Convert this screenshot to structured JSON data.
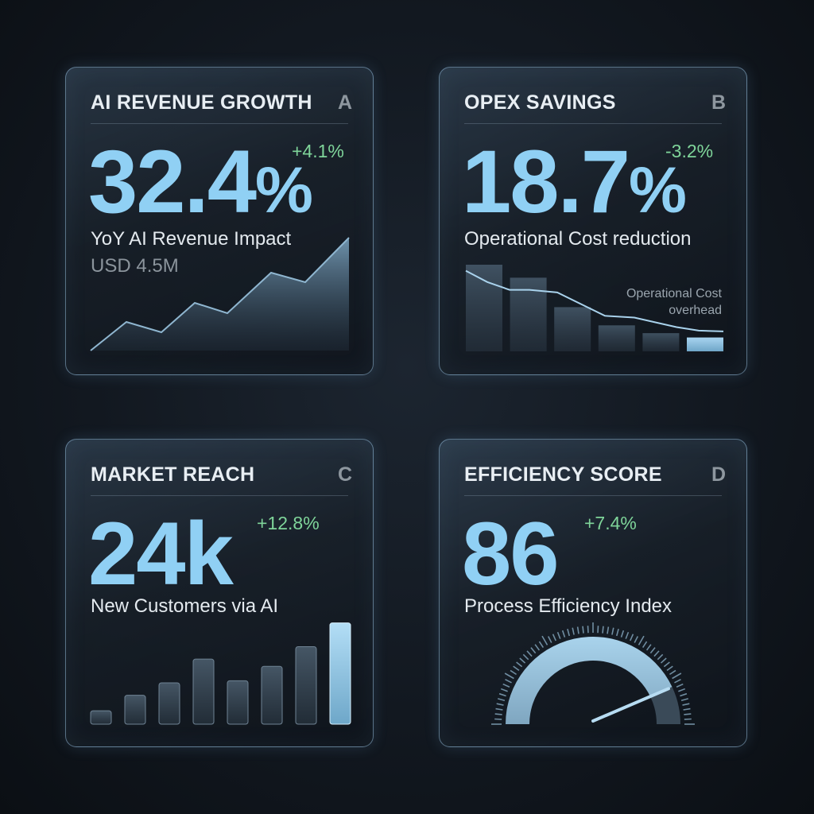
{
  "cards": [
    {
      "title": "AI REVENUE GROWTH",
      "letter": "A",
      "value": "32.4",
      "unit": "%",
      "delta": "+4.1%",
      "subtitle": "YoY AI Revenue Impact",
      "detail": "USD 4.5M"
    },
    {
      "title": "OPEX SAVINGS",
      "letter": "B",
      "value": "18.7",
      "unit": "%",
      "delta": "-3.2%",
      "subtitle": "Operational Cost reduction",
      "chart_note": "Operational Cost overhead"
    },
    {
      "title": "MARKET REACH",
      "letter": "C",
      "value": "24k",
      "delta": "+12.8%",
      "subtitle": "New Customers via AI"
    },
    {
      "title": "EFFICIENCY SCORE",
      "letter": "D",
      "value": "86",
      "delta": "+7.4%",
      "subtitle": "Process Efficiency Index"
    }
  ],
  "colors": {
    "accent": "#90d0f4",
    "positive": "#7fd59a",
    "background": "#121820"
  },
  "chart_data": [
    {
      "type": "area",
      "card": "A",
      "values": [
        0,
        20,
        13,
        33,
        26,
        54,
        47,
        78
      ]
    },
    {
      "type": "bar",
      "card": "B",
      "values": [
        100,
        85,
        51,
        30,
        21,
        16
      ],
      "line": [
        93,
        80,
        71,
        71,
        68,
        41,
        39,
        28,
        24,
        23
      ]
    },
    {
      "type": "bar",
      "card": "C",
      "values": [
        13,
        28,
        40,
        63,
        42,
        56,
        75,
        98
      ],
      "highlight_index": 7
    },
    {
      "type": "gauge",
      "card": "D",
      "value": 86,
      "min": 0,
      "max": 100
    }
  ]
}
